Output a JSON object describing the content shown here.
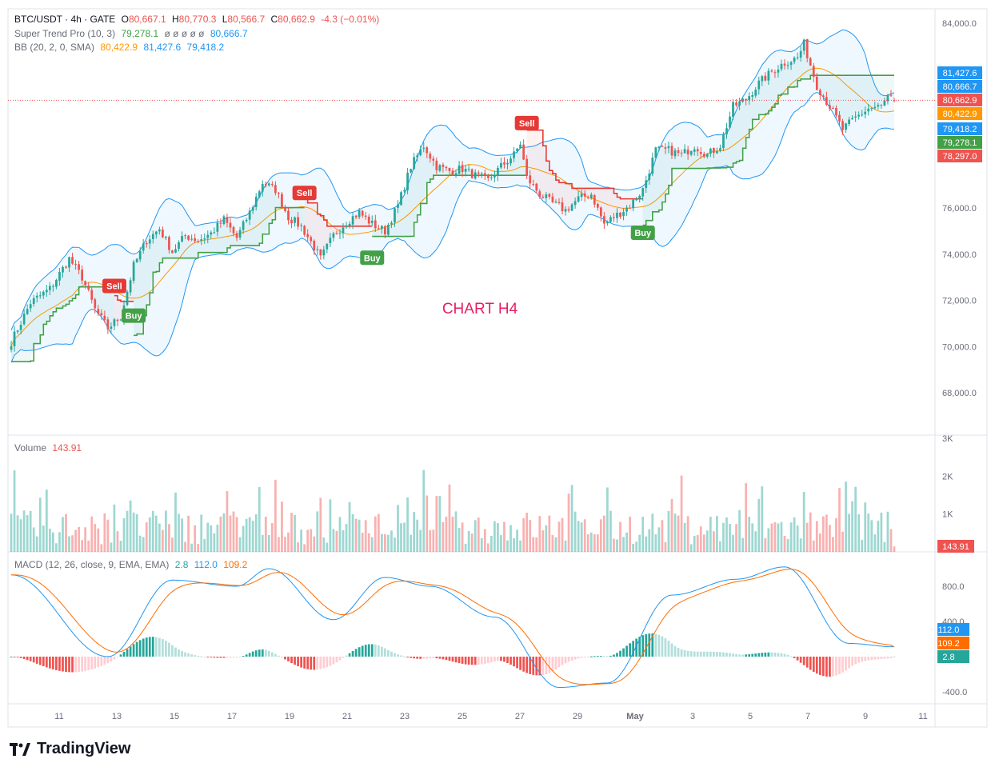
{
  "header": {
    "symbol": "BTC/USDT · 4h · GATE",
    "ohlc": {
      "o_label": "O",
      "o": "80,667.1",
      "h_label": "H",
      "h": "80,770.3",
      "l_label": "L",
      "l": "80,566.7",
      "c_label": "C",
      "c": "80,662.9",
      "chg": "-4.3 (−0.01%)"
    },
    "supertrend": {
      "label": "Super Trend Pro (10, 3)",
      "v1": "79,278.1",
      "mid": "ø ø ø ø ø",
      "v2": "80,666.7"
    },
    "bb": {
      "label": "BB (20, 2, 0, SMA)",
      "basis": "80,422.9",
      "upper": "81,427.6",
      "lower": "79,418.2"
    }
  },
  "annotation": "CHART H4",
  "volume_legend": {
    "label": "Volume",
    "value": "143.91"
  },
  "macd_legend": {
    "label": "MACD (12, 26, close, 9, EMA, EMA)",
    "hist": "2.8",
    "macd": "112.0",
    "signal": "109.2"
  },
  "brand": "TradingView",
  "colors": {
    "up": "#26a69a",
    "down": "#ef5350",
    "bb": "#2196f3",
    "basis": "#ff9800",
    "st_up": "#43a047",
    "st_down": "#e53935",
    "macd": "#2196f3",
    "signal": "#ff6d00"
  },
  "chart_data": [
    {
      "type": "candlestick",
      "title": "BTC/USDT · 4h · GATE",
      "ylim": [
        66000,
        84500
      ],
      "y_ticks": [
        "84,000.0",
        "76,000.0",
        "74,000.0",
        "72,000.0",
        "70,000.0",
        "68,000.0"
      ],
      "x_ticks": [
        "11",
        "13",
        "15",
        "17",
        "19",
        "21",
        "23",
        "25",
        "27",
        "29",
        "May",
        "3",
        "5",
        "7",
        "9",
        "11"
      ],
      "close_anchors": [
        [
          0,
          70200
        ],
        [
          6,
          71900
        ],
        [
          12,
          72500
        ],
        [
          18,
          73800
        ],
        [
          22,
          73000
        ],
        [
          26,
          71600
        ],
        [
          30,
          70800
        ],
        [
          34,
          71300
        ],
        [
          38,
          73500
        ],
        [
          42,
          74600
        ],
        [
          46,
          75100
        ],
        [
          50,
          74100
        ],
        [
          54,
          74800
        ],
        [
          58,
          74600
        ],
        [
          62,
          74900
        ],
        [
          66,
          75500
        ],
        [
          70,
          74700
        ],
        [
          74,
          75800
        ],
        [
          78,
          77100
        ],
        [
          82,
          76800
        ],
        [
          86,
          75600
        ],
        [
          90,
          75200
        ],
        [
          94,
          74300
        ],
        [
          96,
          73800
        ],
        [
          100,
          74800
        ],
        [
          104,
          75400
        ],
        [
          108,
          75800
        ],
        [
          112,
          75300
        ],
        [
          116,
          75000
        ],
        [
          120,
          76100
        ],
        [
          124,
          77800
        ],
        [
          128,
          78700
        ],
        [
          132,
          77800
        ],
        [
          136,
          77600
        ],
        [
          140,
          77700
        ],
        [
          144,
          77400
        ],
        [
          148,
          77200
        ],
        [
          152,
          77800
        ],
        [
          156,
          78300
        ],
        [
          158,
          78800
        ],
        [
          160,
          77300
        ],
        [
          164,
          76600
        ],
        [
          168,
          76200
        ],
        [
          172,
          75900
        ],
        [
          176,
          76400
        ],
        [
          180,
          76600
        ],
        [
          184,
          75300
        ],
        [
          188,
          75700
        ],
        [
          192,
          76100
        ],
        [
          196,
          76800
        ],
        [
          200,
          78500
        ],
        [
          204,
          78500
        ],
        [
          208,
          78300
        ],
        [
          212,
          78700
        ],
        [
          216,
          78300
        ],
        [
          220,
          78700
        ],
        [
          224,
          80400
        ],
        [
          228,
          80700
        ],
        [
          232,
          81400
        ],
        [
          236,
          81900
        ],
        [
          240,
          82300
        ],
        [
          244,
          82500
        ],
        [
          246,
          83100
        ],
        [
          250,
          81300
        ],
        [
          254,
          80400
        ],
        [
          258,
          79400
        ],
        [
          262,
          79900
        ],
        [
          266,
          80300
        ],
        [
          270,
          80400
        ],
        [
          272,
          80800
        ],
        [
          274,
          80663
        ]
      ],
      "n_candles": 275,
      "last": {
        "open": 80667.1,
        "high": 80770.3,
        "low": 80566.7,
        "close": 80662.9
      },
      "bollinger": {
        "upper": 81427.6,
        "basis": 80422.9,
        "lower": 79418.2
      },
      "supertrend_last": 79278.1,
      "signals": [
        {
          "label": "Sell",
          "index": 32
        },
        {
          "label": "Buy",
          "index": 38
        },
        {
          "label": "Sell",
          "index": 91
        },
        {
          "label": "Buy",
          "index": 112
        },
        {
          "label": "Sell",
          "index": 160
        },
        {
          "label": "Buy",
          "index": 196
        }
      ],
      "price_tags": [
        {
          "text": "81,427.6",
          "color": "#2196f3"
        },
        {
          "text": "80,666.7",
          "color": "#2196f3"
        },
        {
          "text": "80,662.9",
          "color": "#ef5350"
        },
        {
          "text": "80,422.9",
          "color": "#ff9800"
        },
        {
          "text": "79,418.2",
          "color": "#2196f3"
        },
        {
          "text": "79,278.1",
          "color": "#43a047"
        },
        {
          "text": "78,297.0",
          "color": "#ef5350"
        }
      ]
    },
    {
      "type": "bar",
      "title": "Volume",
      "ylim": [
        0,
        3200
      ],
      "y_ticks": [
        "3K",
        "2K",
        "1K"
      ],
      "last": 143.91
    },
    {
      "type": "line",
      "title": "MACD (12, 26, close, 9, EMA, EMA)",
      "ylim": [
        -520,
        1150
      ],
      "y_ticks": [
        "800.0",
        "400.0",
        "-400.0"
      ],
      "macd_anchors": [
        [
          0,
          930
        ],
        [
          30,
          0
        ],
        [
          50,
          870
        ],
        [
          70,
          800
        ],
        [
          80,
          1000
        ],
        [
          100,
          420
        ],
        [
          116,
          900
        ],
        [
          130,
          800
        ],
        [
          150,
          450
        ],
        [
          170,
          -350
        ],
        [
          185,
          -300
        ],
        [
          205,
          700
        ],
        [
          225,
          880
        ],
        [
          240,
          1020
        ],
        [
          260,
          150
        ],
        [
          274,
          112
        ]
      ],
      "last": {
        "macd": 112.0,
        "signal": 109.2,
        "hist": 2.8
      },
      "tags": [
        {
          "text": "112.0",
          "color": "#2196f3"
        },
        {
          "text": "109.2",
          "color": "#ff6d00"
        },
        {
          "text": "2.8",
          "color": "#26a69a"
        }
      ]
    }
  ]
}
